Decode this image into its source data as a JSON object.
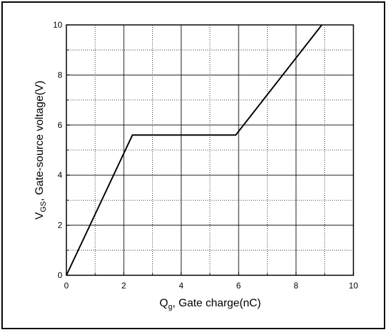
{
  "chart_data": {
    "type": "line",
    "xlabel": {
      "main": "Q",
      "sub": "g",
      "rest": ", Gate charge(nC)"
    },
    "ylabel": {
      "main": "V",
      "sub": "GS",
      "rest": ", Gate-source voltage(V)"
    },
    "xlim": [
      0,
      10
    ],
    "ylim": [
      0,
      10
    ],
    "x_ticks": [
      "0",
      "2",
      "4",
      "6",
      "8",
      "10"
    ],
    "y_ticks": [
      "0",
      "2",
      "4",
      "6",
      "8",
      "10"
    ],
    "grid": {
      "major": "solid",
      "minor": "dotted"
    },
    "series": [
      {
        "x": [
          0,
          2.3,
          5.9,
          8.9
        ],
        "y": [
          0,
          5.6,
          5.6,
          10.0
        ]
      }
    ],
    "colors": {
      "line": "#000000",
      "grid": "#000000"
    }
  }
}
